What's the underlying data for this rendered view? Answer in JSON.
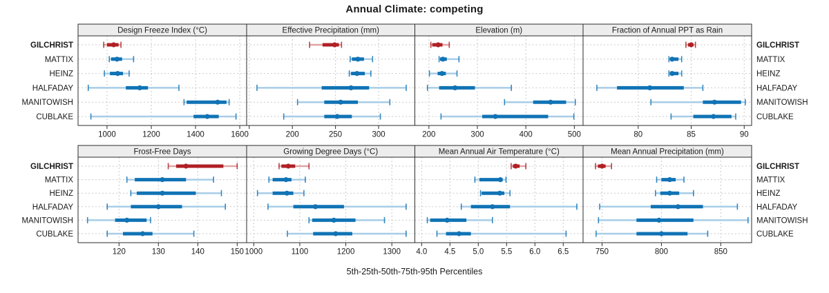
{
  "title": "Annual Climate: competing",
  "xlabel": "5th-25th-50th-75th-95th Percentiles",
  "sites": [
    "GILCHRIST",
    "MATTIX",
    "HEINZ",
    "HALFADAY",
    "MANITOWISH",
    "CUBLAKE"
  ],
  "highlight_site": "GILCHRIST",
  "colors": {
    "highlight_dark": "#B02025",
    "highlight_light": "#E2A2A4",
    "normal_dark": "#1073B5",
    "normal_light": "#A7CDE8",
    "grid": "#C9C9C9",
    "strip_bg": "#EDEDED",
    "border": "#2B2B2B",
    "text": "#1A1A1A"
  },
  "chart_data": {
    "type": "percentile-dotplot-grid",
    "percentiles": [
      "5th",
      "25th",
      "50th",
      "75th",
      "95th"
    ],
    "grid": "on",
    "layout": {
      "rows": 2,
      "cols": 4
    },
    "panels": [
      {
        "title": "Design Freeze Index (°C)",
        "xlim": [
          869,
          1631
        ],
        "tick_values": [
          1000,
          1200,
          1400,
          1600
        ],
        "tick_labels": [
          "1000",
          "1200",
          "1400",
          "1600"
        ],
        "unlabeled_ticks": [],
        "values": {
          "GILCHRIST": [
            985,
            1000,
            1030,
            1052,
            1063
          ],
          "MATTIX": [
            1010,
            1018,
            1045,
            1068,
            1120
          ],
          "HEINZ": [
            988,
            1013,
            1048,
            1072,
            1100
          ],
          "HALFADAY": [
            915,
            1085,
            1148,
            1185,
            1325
          ],
          "MANITOWISH": [
            1348,
            1360,
            1500,
            1540,
            1552
          ],
          "CUBLAKE": [
            927,
            1391,
            1453,
            1505,
            1583
          ]
        }
      },
      {
        "title": "Effective Precipitation (mm)",
        "xlim": [
          147,
          342
        ],
        "tick_values": [
          200,
          250,
          300
        ],
        "tick_labels": [
          "200",
          "250",
          "300"
        ],
        "unlabeled_ticks": [
          150
        ],
        "values": {
          "GILCHRIST": [
            220,
            235,
            249,
            254,
            257
          ],
          "MATTIX": [
            267,
            269,
            276,
            283,
            293
          ],
          "HEINZ": [
            266,
            268,
            275,
            284,
            291
          ],
          "HALFADAY": [
            159,
            234,
            268,
            289,
            332
          ],
          "MANITOWISH": [
            206,
            237,
            256,
            276,
            313
          ],
          "CUBLAKE": [
            190,
            237,
            252,
            269,
            302
          ]
        }
      },
      {
        "title": "Elevation (m)",
        "xlim": [
          171,
          518
        ],
        "tick_values": [
          200,
          300,
          400,
          500
        ],
        "tick_labels": [
          "200",
          "300",
          "400",
          "500"
        ],
        "unlabeled_ticks": [],
        "values": {
          "GILCHRIST": [
            204,
            207,
            219,
            228,
            242
          ],
          "MATTIX": [
            221,
            223,
            229,
            237,
            262
          ],
          "HEINZ": [
            201,
            218,
            227,
            235,
            258
          ],
          "HALFADAY": [
            197,
            221,
            254,
            295,
            370
          ],
          "MANITOWISH": [
            356,
            415,
            451,
            483,
            502
          ],
          "CUBLAKE": [
            225,
            310,
            337,
            446,
            499
          ]
        }
      },
      {
        "title": "Fraction of Annual PPT as Rain",
        "xlim": [
          74.8,
          90.7
        ],
        "tick_values": [
          80,
          85,
          90
        ],
        "tick_labels": [
          "80",
          "85",
          "90"
        ],
        "unlabeled_ticks": [],
        "values": {
          "GILCHRIST": [
            84.5,
            84.7,
            85.0,
            85.2,
            85.4
          ],
          "MATTIX": [
            82.9,
            83.0,
            83.2,
            83.8,
            84.1
          ],
          "HEINZ": [
            82.9,
            83.0,
            83.2,
            83.8,
            84.1
          ],
          "HALFADAY": [
            76.1,
            78.0,
            81.1,
            84.3,
            86.1
          ],
          "MANITOWISH": [
            81.2,
            86.1,
            87.2,
            89.7,
            90.1
          ],
          "CUBLAKE": [
            83.1,
            85.2,
            87.1,
            88.8,
            89.2
          ]
        }
      },
      {
        "title": "Frost-Free Days",
        "xlim": [
          109.6,
          152.4
        ],
        "tick_values": [
          120,
          130,
          140,
          150
        ],
        "tick_labels": [
          "120",
          "130",
          "140",
          "150"
        ],
        "unlabeled_ticks": [],
        "values": {
          "GILCHRIST": [
            132.5,
            134.5,
            137,
            146.5,
            150
          ],
          "MATTIX": [
            122,
            124,
            131,
            137,
            144
          ],
          "HEINZ": [
            123,
            124.5,
            131,
            139.5,
            146
          ],
          "HALFADAY": [
            117,
            123,
            130,
            136,
            147
          ],
          "MANITOWISH": [
            112,
            119,
            122,
            127,
            128
          ],
          "CUBLAKE": [
            117,
            121,
            126,
            128.5,
            139
          ]
        }
      },
      {
        "title": "Growing Degree Days (°C)",
        "xlim": [
          984.5,
          1350
        ],
        "tick_values": [
          1000,
          1100,
          1200,
          1300
        ],
        "tick_labels": [
          "1000",
          "1100",
          "1200",
          "1300"
        ],
        "unlabeled_ticks": [],
        "values": {
          "GILCHRIST": [
            1055,
            1060,
            1075,
            1090,
            1120
          ],
          "MATTIX": [
            1033,
            1041,
            1070,
            1082,
            1112
          ],
          "HEINZ": [
            1008,
            1041,
            1072,
            1086,
            1109
          ],
          "HALFADAY": [
            1031,
            1086,
            1134,
            1196,
            1331
          ],
          "MANITOWISH": [
            1120,
            1127,
            1174,
            1221,
            1284
          ],
          "CUBLAKE": [
            1073,
            1129,
            1178,
            1214,
            1331
          ]
        }
      },
      {
        "title": "Mean Annual Air Temperature (°C)",
        "xlim": [
          3.88,
          6.85
        ],
        "tick_values": [
          4.0,
          4.5,
          5.0,
          5.5,
          6.0,
          6.5
        ],
        "tick_labels": [
          "4.0",
          "4.5",
          "5.0",
          "5.5",
          "6.0",
          "6.5"
        ],
        "unlabeled_ticks": [],
        "values": {
          "GILCHRIST": [
            5.58,
            5.61,
            5.66,
            5.73,
            5.84
          ],
          "MATTIX": [
            4.94,
            5.02,
            5.39,
            5.43,
            5.49
          ],
          "HEINZ": [
            5.04,
            5.06,
            5.38,
            5.46,
            5.56
          ],
          "HALFADAY": [
            4.7,
            4.87,
            5.25,
            5.56,
            6.74
          ],
          "MANITOWISH": [
            4.1,
            4.15,
            4.45,
            4.79,
            5.25
          ],
          "CUBLAKE": [
            4.27,
            4.43,
            4.66,
            4.87,
            6.55
          ]
        }
      },
      {
        "title": "Mean Annual Precipitation (mm)",
        "xlim": [
          734,
          876
        ],
        "tick_values": [
          750,
          800,
          850
        ],
        "tick_labels": [
          "750",
          "800",
          "850"
        ],
        "unlabeled_ticks": [],
        "values": {
          "GILCHRIST": [
            744.5,
            746.5,
            750,
            753,
            758
          ],
          "MATTIX": [
            796,
            800,
            807,
            812,
            819
          ],
          "HEINZ": [
            795,
            799,
            807,
            815,
            827
          ],
          "HALFADAY": [
            748,
            791,
            814,
            835,
            864
          ],
          "MANITOWISH": [
            747,
            779,
            798,
            827,
            873
          ],
          "CUBLAKE": [
            745,
            779,
            800,
            822,
            839
          ]
        }
      }
    ]
  }
}
